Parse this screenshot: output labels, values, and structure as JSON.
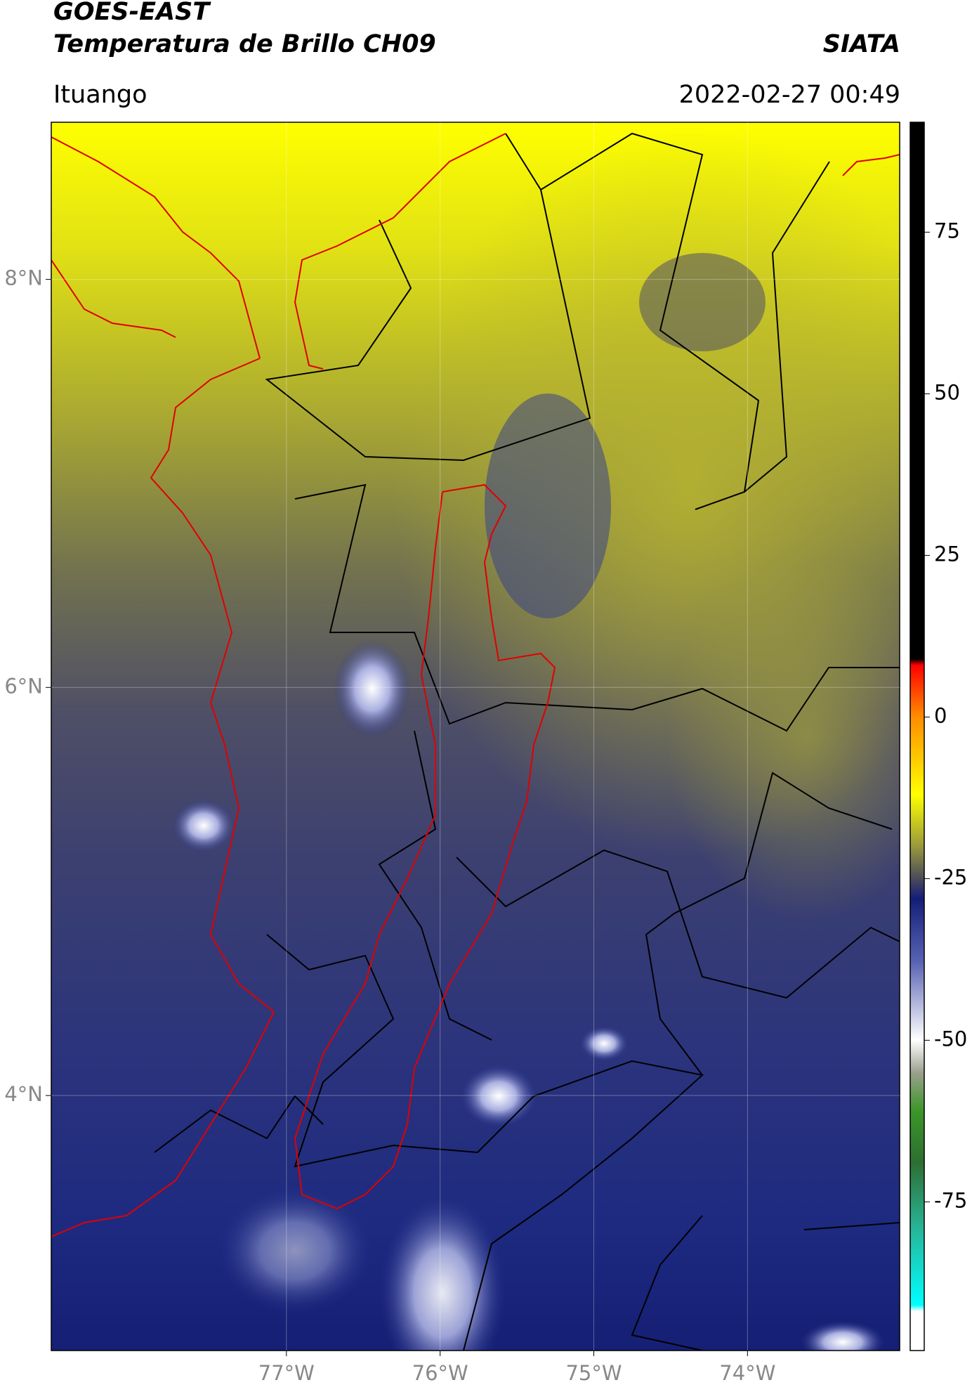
{
  "header": {
    "title": "GOES-EAST",
    "subtitle": "Temperatura de Brillo CH09",
    "source": "SIATA",
    "location": "Ituango",
    "datetime": "2022-02-27 00:49"
  },
  "map": {
    "lon_range": [
      -78.53,
      -73.01
    ],
    "lat_range": [
      2.75,
      8.77
    ],
    "lon_ticks": [
      {
        "value": -77,
        "label": "77°W"
      },
      {
        "value": -76,
        "label": "76°W"
      },
      {
        "value": -75,
        "label": "75°W"
      },
      {
        "value": -74,
        "label": "74°W"
      }
    ],
    "lat_ticks": [
      {
        "value": 8,
        "label": "8°N"
      },
      {
        "value": 6,
        "label": "6°N"
      },
      {
        "value": 4,
        "label": "4°N"
      }
    ]
  },
  "colorbar": {
    "range": [
      -98,
      92
    ],
    "ticks": [
      75,
      50,
      25,
      0,
      -25,
      -50,
      -75
    ]
  }
}
